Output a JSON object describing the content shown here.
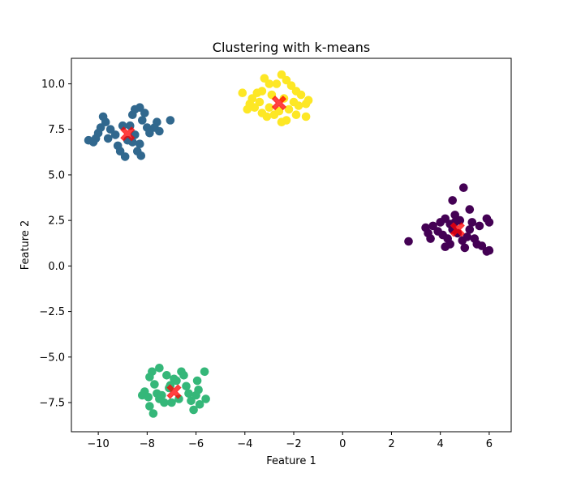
{
  "chart_data": {
    "type": "scatter",
    "title": "Clustering with k-means",
    "xlabel": "Feature 1",
    "ylabel": "Feature 2",
    "xlim": [
      -11.1,
      6.9
    ],
    "ylim": [
      -9.1,
      11.4
    ],
    "xticks": [
      -10,
      -8,
      -6,
      -4,
      -2,
      0,
      2,
      4,
      6
    ],
    "yticks": [
      -7.5,
      -5.0,
      -2.5,
      0.0,
      2.5,
      5.0,
      7.5,
      10.0
    ],
    "xtick_labels": [
      "−10",
      "−8",
      "−6",
      "−4",
      "−2",
      "0",
      "2",
      "4",
      "6"
    ],
    "ytick_labels": [
      "−7.5",
      "−5.0",
      "−2.5",
      "0.0",
      "2.5",
      "5.0",
      "7.5",
      "10.0"
    ],
    "grid": false,
    "series": [
      {
        "color": "#440154",
        "points": [
          [
            4.95,
            4.3
          ],
          [
            4.5,
            3.6
          ],
          [
            5.2,
            3.1
          ],
          [
            4.2,
            2.6
          ],
          [
            4.6,
            2.8
          ],
          [
            4.0,
            2.4
          ],
          [
            4.4,
            2.3
          ],
          [
            4.8,
            2.5
          ],
          [
            5.3,
            2.4
          ],
          [
            5.6,
            2.2
          ],
          [
            5.9,
            2.6
          ],
          [
            6.0,
            2.4
          ],
          [
            3.7,
            2.2
          ],
          [
            3.9,
            1.9
          ],
          [
            4.1,
            1.7
          ],
          [
            4.3,
            1.5
          ],
          [
            4.5,
            2.0
          ],
          [
            4.7,
            1.8
          ],
          [
            4.9,
            1.4
          ],
          [
            5.1,
            1.6
          ],
          [
            5.4,
            1.5
          ],
          [
            5.5,
            1.2
          ],
          [
            5.7,
            1.1
          ],
          [
            5.9,
            0.8
          ],
          [
            6.0,
            0.85
          ],
          [
            5.0,
            1.0
          ],
          [
            4.2,
            1.05
          ],
          [
            3.5,
            1.8
          ],
          [
            3.4,
            2.1
          ],
          [
            2.7,
            1.35
          ],
          [
            4.4,
            1.2
          ],
          [
            4.6,
            2.4
          ],
          [
            5.2,
            2.0
          ],
          [
            3.6,
            1.5
          ]
        ]
      },
      {
        "color": "#31688e",
        "points": [
          [
            -9.8,
            8.2
          ],
          [
            -9.7,
            7.9
          ],
          [
            -9.9,
            7.6
          ],
          [
            -10.0,
            7.3
          ],
          [
            -10.1,
            7.0
          ],
          [
            -10.4,
            6.9
          ],
          [
            -10.2,
            6.8
          ],
          [
            -9.5,
            7.5
          ],
          [
            -9.3,
            7.2
          ],
          [
            -9.2,
            6.6
          ],
          [
            -9.1,
            6.3
          ],
          [
            -8.9,
            6.0
          ],
          [
            -8.7,
            7.7
          ],
          [
            -8.6,
            8.3
          ],
          [
            -8.5,
            8.6
          ],
          [
            -8.3,
            8.7
          ],
          [
            -8.1,
            8.4
          ],
          [
            -8.2,
            8.0
          ],
          [
            -8.0,
            7.6
          ],
          [
            -7.9,
            7.3
          ],
          [
            -7.7,
            7.6
          ],
          [
            -7.6,
            7.9
          ],
          [
            -7.5,
            7.4
          ],
          [
            -8.3,
            6.7
          ],
          [
            -8.4,
            6.3
          ],
          [
            -8.25,
            6.05
          ],
          [
            -8.8,
            6.9
          ],
          [
            -9.6,
            7.0
          ],
          [
            -8.5,
            7.2
          ],
          [
            -9.0,
            7.7
          ],
          [
            -7.05,
            8.0
          ],
          [
            -8.6,
            6.8
          ]
        ]
      },
      {
        "color": "#35b779",
        "points": [
          [
            -7.5,
            -5.6
          ],
          [
            -7.8,
            -5.8
          ],
          [
            -7.9,
            -6.1
          ],
          [
            -8.1,
            -6.9
          ],
          [
            -8.2,
            -7.1
          ],
          [
            -7.95,
            -7.2
          ],
          [
            -7.7,
            -6.5
          ],
          [
            -7.6,
            -7.0
          ],
          [
            -7.5,
            -7.3
          ],
          [
            -7.9,
            -7.7
          ],
          [
            -7.75,
            -8.1
          ],
          [
            -7.3,
            -7.5
          ],
          [
            -7.1,
            -6.7
          ],
          [
            -6.8,
            -6.3
          ],
          [
            -6.6,
            -5.8
          ],
          [
            -6.5,
            -6.0
          ],
          [
            -6.4,
            -6.6
          ],
          [
            -6.3,
            -7.0
          ],
          [
            -6.2,
            -7.4
          ],
          [
            -6.1,
            -7.9
          ],
          [
            -6.0,
            -7.1
          ],
          [
            -5.9,
            -6.8
          ],
          [
            -5.95,
            -6.3
          ],
          [
            -5.85,
            -7.6
          ],
          [
            -5.65,
            -5.8
          ],
          [
            -5.6,
            -7.3
          ],
          [
            -7.0,
            -7.5
          ],
          [
            -6.9,
            -6.2
          ],
          [
            -7.2,
            -6.0
          ],
          [
            -6.7,
            -7.3
          ],
          [
            -7.05,
            -6.55
          ],
          [
            -7.4,
            -7.1
          ]
        ]
      },
      {
        "color": "#fde725",
        "points": [
          [
            -2.5,
            10.5
          ],
          [
            -2.3,
            10.2
          ],
          [
            -2.7,
            10.0
          ],
          [
            -3.0,
            10.0
          ],
          [
            -3.2,
            10.3
          ],
          [
            -2.1,
            9.9
          ],
          [
            -1.9,
            9.6
          ],
          [
            -1.7,
            9.4
          ],
          [
            -1.5,
            8.9
          ],
          [
            -1.4,
            9.1
          ],
          [
            -1.5,
            8.2
          ],
          [
            -1.9,
            8.3
          ],
          [
            -2.3,
            8.0
          ],
          [
            -2.5,
            7.9
          ],
          [
            -2.8,
            8.3
          ],
          [
            -3.1,
            8.2
          ],
          [
            -3.3,
            8.4
          ],
          [
            -3.6,
            8.7
          ],
          [
            -3.8,
            8.9
          ],
          [
            -3.7,
            9.2
          ],
          [
            -3.5,
            9.5
          ],
          [
            -3.3,
            9.6
          ],
          [
            -2.9,
            9.4
          ],
          [
            -2.4,
            9.2
          ],
          [
            -2.0,
            9.0
          ],
          [
            -2.2,
            8.6
          ],
          [
            -3.0,
            8.7
          ],
          [
            -4.1,
            9.5
          ],
          [
            -3.4,
            9.0
          ],
          [
            -2.6,
            8.5
          ],
          [
            -1.8,
            8.8
          ],
          [
            -3.9,
            8.6
          ]
        ]
      }
    ],
    "centroids": [
      [
        4.7,
        2.0
      ],
      [
        -8.8,
        7.25
      ],
      [
        -6.9,
        -6.9
      ],
      [
        -2.6,
        8.95
      ]
    ],
    "centroid_color": "#ff0000"
  }
}
